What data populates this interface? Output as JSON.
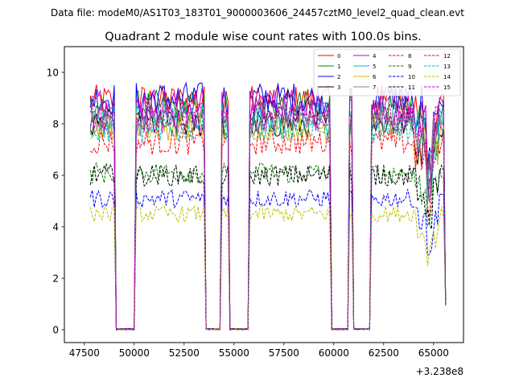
{
  "chart_data": {
    "type": "line",
    "suptitle": "Data file: modeM0/AS1T03_183T01_9000003606_24457cztM0_level2_quad_clean.evt",
    "title": "Quadrant 2 module wise count rates with 100.0s bins.",
    "xlabel": "",
    "ylabel": "",
    "x_offset_label": "+3.238e8",
    "xlim": [
      46500,
      66500
    ],
    "ylim": [
      -0.5,
      11.0
    ],
    "xticks": [
      47500,
      50000,
      52500,
      55000,
      57500,
      60000,
      62500,
      65000
    ],
    "xtick_labels": [
      "47500",
      "50000",
      "52500",
      "55000",
      "57500",
      "60000",
      "62500",
      "65000"
    ],
    "yticks": [
      0,
      2,
      4,
      6,
      8,
      10
    ],
    "ytick_labels": [
      "0",
      "2",
      "4",
      "6",
      "8",
      "10"
    ],
    "legend_position": "top-right",
    "segments": [
      {
        "start": 47800,
        "end": 49000
      },
      {
        "start": 50100,
        "end": 53500
      },
      {
        "start": 54400,
        "end": 54700
      },
      {
        "start": 55800,
        "end": 59800
      },
      {
        "start": 60800,
        "end": 60900
      },
      {
        "start": 61900,
        "end": 65600
      }
    ],
    "series": [
      {
        "name": "0",
        "color": "#ff0000",
        "dash": "solid",
        "base": 8.9
      },
      {
        "name": "1",
        "color": "#008000",
        "dash": "solid",
        "base": 8.7
      },
      {
        "name": "2",
        "color": "#0000ff",
        "dash": "solid",
        "base": 9.0
      },
      {
        "name": "3",
        "color": "#000000",
        "dash": "solid",
        "base": 8.0
      },
      {
        "name": "4",
        "color": "#bf00bf",
        "dash": "solid",
        "base": 8.8
      },
      {
        "name": "5",
        "color": "#00bfbf",
        "dash": "solid",
        "base": 8.3
      },
      {
        "name": "6",
        "color": "#bfbf00",
        "dash": "solid",
        "base": 7.9
      },
      {
        "name": "7",
        "color": "#808080",
        "dash": "solid",
        "base": 8.1
      },
      {
        "name": "8",
        "color": "#ff0000",
        "dash": "dashed",
        "base": 7.3
      },
      {
        "name": "9",
        "color": "#008000",
        "dash": "dashed",
        "base": 6.1
      },
      {
        "name": "10",
        "color": "#0000ff",
        "dash": "dashed",
        "base": 5.1
      },
      {
        "name": "11",
        "color": "#000000",
        "dash": "dashed",
        "base": 6.0
      },
      {
        "name": "12",
        "color": "#bf00bf",
        "dash": "dashed",
        "base": 8.2
      },
      {
        "name": "13",
        "color": "#00bfbf",
        "dash": "dashed",
        "base": 7.8
      },
      {
        "name": "14",
        "color": "#bfbf00",
        "dash": "dashed",
        "base": 4.5
      },
      {
        "name": "15",
        "color": "#bf00bf",
        "dash": "dashed",
        "base": 8.3
      }
    ]
  }
}
